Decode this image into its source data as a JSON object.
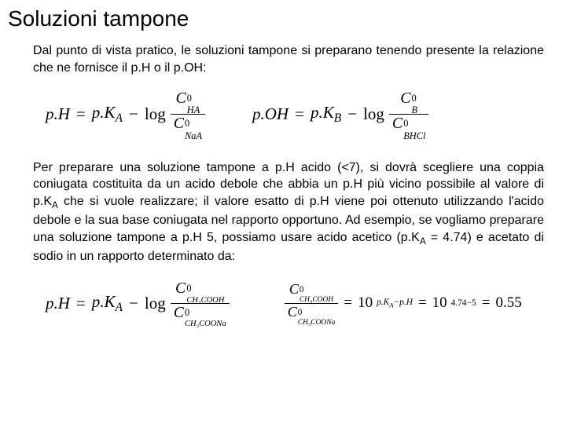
{
  "title": "Soluzioni tampone",
  "intro": "Dal punto di vista pratico, le soluzioni tampone si preparano tenendo presente la relazione che ne fornisce il p.H  o il p.OH:",
  "formula1": {
    "lhs": "p.H",
    "eq": "=",
    "pK": "p.K",
    "pKsub": "A",
    "minus": "−",
    "log": "log",
    "num_C": "C",
    "num_sup": "0",
    "num_sub": "HA",
    "den_C": "C",
    "den_sup": "0",
    "den_sub": "NaA"
  },
  "formula2": {
    "lhs": "p.OH",
    "eq": "=",
    "pK": "p.K",
    "pKsub": "B",
    "minus": "−",
    "log": "log",
    "num_C": "C",
    "num_sup": "0",
    "num_sub": "B",
    "den_C": "C",
    "den_sup": "0",
    "den_sub": "BHCl"
  },
  "para": {
    "p1a": "Per preparare una soluzione tampone a p.H acido (<7), si dovrà scegliere una coppia coniugata costituita da un acido debole che abbia un p.H più vicino possibile al valore di p.K",
    "p1b": " che si vuole realizzare; il valore esatto di p.H viene poi ottenuto utilizzando l'acido debole e la sua base coniugata nel rapporto opportuno. Ad esempio, se vogliamo preparare una soluzione tampone a p.H 5, possiamo usare acido acetico (p.K",
    "p1c": " = 4.74) e acetato di sodio in un rapporto determinato da:",
    "subA": "A"
  },
  "formula3": {
    "lhs": "p.H",
    "eq": "=",
    "pK": "p.K",
    "pKsub": "A",
    "minus": "−",
    "log": "log",
    "num_C": "C",
    "num_sup": "0",
    "num_sub": "CH₃COOH",
    "den_C": "C",
    "den_sup": "0",
    "den_sub": "CH₃COONa"
  },
  "formula4": {
    "num_C": "C",
    "num_sup": "0",
    "num_sub": "CH₃COOH",
    "den_C": "C",
    "den_sup": "0",
    "den_sub": "CH₃COONa",
    "eq": "=",
    "ten": "10",
    "exp": "p.K",
    "expsub": "A",
    "expminus": "−",
    "expph": "p.H",
    "eq2": "=",
    "ten2": "10",
    "exp2": "4.74−5",
    "eq3": "=",
    "result": "0.55"
  }
}
